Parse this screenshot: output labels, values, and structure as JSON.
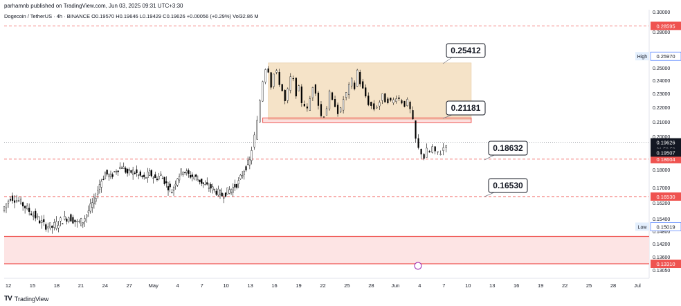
{
  "header": {
    "publish_line": "parhamnb published on TradingView.com, Jun 03, 2025 09:31 UTC+3:30",
    "symbol_line": "Dogecoin / TetherUS · 4h · BINANCE  O0.19570  H0.19646  L0.19429  C0.19626  +0.00056 (+0.29%)  Vol32.86 M"
  },
  "footer": {
    "brand": "TradingView",
    "logo": "tradingview-logo-icon"
  },
  "colors": {
    "up": "#000000",
    "zone_fill": "#f5e3c8",
    "support_fill": "#fde4e4",
    "red_line": "#ef5350",
    "label_bg": "#ffffff",
    "axis_text": "#131722",
    "price_tag_red": "#ef5350",
    "price_tag_dark": "#131722"
  },
  "chart_data": {
    "type": "candlestick",
    "title": "Dogecoin / TetherUS · 4h · BINANCE",
    "ylim": [
      0.128,
      0.302
    ],
    "y_ticks": [
      0.3,
      0.28,
      0.25,
      0.24,
      0.23,
      0.22,
      0.21,
      0.2,
      0.19,
      0.18,
      0.17,
      0.162,
      0.154,
      0.148,
      0.142,
      0.136,
      0.1305
    ],
    "y_tick_labels": [
      "0.30000",
      "0.28000",
      "0.25000",
      "0.24000",
      "0.23000",
      "0.22000",
      "0.21000",
      "0.20000",
      "0.19000",
      "0.18000",
      "0.17000",
      "0.16200",
      "0.15400",
      "0.14800",
      "0.14200",
      "0.13600",
      "0.13050"
    ],
    "x_tick_labels": [
      "12",
      "15",
      "18",
      "21",
      "24",
      "27",
      "May",
      "4",
      "7",
      "10",
      "13",
      "16",
      "19",
      "22",
      "25",
      "28",
      "Jun",
      "4",
      "7",
      "10",
      "13",
      "16",
      "19",
      "22",
      "25",
      "28",
      "Jul"
    ],
    "price_path": [
      [
        0,
        0.158
      ],
      [
        3,
        0.165
      ],
      [
        6,
        0.163
      ],
      [
        9,
        0.159
      ],
      [
        12,
        0.155
      ],
      [
        15,
        0.151
      ],
      [
        18,
        0.15
      ],
      [
        21,
        0.153
      ],
      [
        24,
        0.155
      ],
      [
        27,
        0.152
      ],
      [
        29,
        0.153
      ],
      [
        31,
        0.158
      ],
      [
        33,
        0.163
      ],
      [
        35,
        0.172
      ],
      [
        37,
        0.178
      ],
      [
        39,
        0.176
      ],
      [
        41,
        0.18
      ],
      [
        43,
        0.182
      ],
      [
        45,
        0.178
      ],
      [
        47,
        0.179
      ],
      [
        49,
        0.177
      ],
      [
        51,
        0.175
      ],
      [
        53,
        0.178
      ],
      [
        55,
        0.175
      ],
      [
        57,
        0.177
      ],
      [
        59,
        0.172
      ],
      [
        61,
        0.168
      ],
      [
        63,
        0.176
      ],
      [
        65,
        0.18
      ],
      [
        67,
        0.177
      ],
      [
        69,
        0.176
      ],
      [
        71,
        0.174
      ],
      [
        73,
        0.171
      ],
      [
        75,
        0.17
      ],
      [
        77,
        0.168
      ],
      [
        79,
        0.166
      ],
      [
        81,
        0.168
      ],
      [
        83,
        0.17
      ],
      [
        85,
        0.173
      ],
      [
        87,
        0.18
      ],
      [
        89,
        0.185
      ],
      [
        90,
        0.192
      ],
      [
        91,
        0.2
      ],
      [
        92,
        0.21
      ],
      [
        93,
        0.225
      ],
      [
        94,
        0.24
      ],
      [
        95,
        0.25
      ],
      [
        96,
        0.248
      ],
      [
        97,
        0.236
      ],
      [
        98,
        0.245
      ],
      [
        99,
        0.246
      ],
      [
        100,
        0.238
      ],
      [
        101,
        0.232
      ],
      [
        102,
        0.224
      ],
      [
        103,
        0.232
      ],
      [
        104,
        0.242
      ],
      [
        105,
        0.24
      ],
      [
        106,
        0.23
      ],
      [
        107,
        0.234
      ],
      [
        108,
        0.224
      ],
      [
        109,
        0.222
      ],
      [
        110,
        0.218
      ],
      [
        111,
        0.226
      ],
      [
        112,
        0.236
      ],
      [
        113,
        0.232
      ],
      [
        114,
        0.222
      ],
      [
        115,
        0.214
      ],
      [
        116,
        0.215
      ],
      [
        117,
        0.22
      ],
      [
        118,
        0.23
      ],
      [
        119,
        0.224
      ],
      [
        120,
        0.222
      ],
      [
        121,
        0.217
      ],
      [
        122,
        0.218
      ],
      [
        123,
        0.226
      ],
      [
        124,
        0.23
      ],
      [
        125,
        0.235
      ],
      [
        126,
        0.24
      ],
      [
        127,
        0.234
      ],
      [
        128,
        0.248
      ],
      [
        129,
        0.238
      ],
      [
        130,
        0.233
      ],
      [
        131,
        0.228
      ],
      [
        132,
        0.223
      ],
      [
        133,
        0.221
      ],
      [
        134,
        0.219
      ],
      [
        135,
        0.221
      ],
      [
        136,
        0.224
      ],
      [
        137,
        0.228
      ],
      [
        138,
        0.225
      ],
      [
        139,
        0.225
      ],
      [
        140,
        0.224
      ],
      [
        141,
        0.225
      ],
      [
        142,
        0.228
      ],
      [
        143,
        0.226
      ],
      [
        144,
        0.224
      ],
      [
        145,
        0.222
      ],
      [
        146,
        0.224
      ],
      [
        147,
        0.218
      ],
      [
        148,
        0.21
      ],
      [
        149,
        0.198
      ],
      [
        150,
        0.192
      ],
      [
        151,
        0.19
      ],
      [
        152,
        0.187
      ],
      [
        153,
        0.191
      ],
      [
        154,
        0.19
      ],
      [
        155,
        0.193
      ],
      [
        156,
        0.189
      ],
      [
        157,
        0.19
      ],
      [
        158,
        0.19
      ],
      [
        159,
        0.193
      ],
      [
        160,
        0.196
      ]
    ],
    "bars_span": [
      0,
      160
    ],
    "resistance_zone": {
      "from": 0.21181,
      "to": 0.25412,
      "label": "0.25412",
      "label2": "0.21181",
      "x_from": 95,
      "x_to": 168
    },
    "red_box": {
      "from": 0.2105,
      "to": 0.21181,
      "x_from": 93,
      "x_to": 168
    },
    "support_zone": {
      "from": 0.1331,
      "to": 0.1455
    },
    "levels": [
      {
        "price": 0.28595,
        "label": "0.28595",
        "tag": "red"
      },
      {
        "price": 0.18604,
        "label": "0.18604",
        "tag": "red"
      },
      {
        "price": 0.1653,
        "label": "0.16530",
        "tag": "red"
      },
      {
        "price": 0.1331,
        "label": "0.13310",
        "tag": "red"
      }
    ],
    "callouts": [
      {
        "text": "0.25412",
        "price": 0.25412,
        "x_bar": 168
      },
      {
        "text": "0.21181",
        "price": 0.21181,
        "x_bar": 168
      },
      {
        "text": "0.18632",
        "price": 0.18632,
        "x_bar": 175
      },
      {
        "text": "0.16530",
        "price": 0.1653,
        "x_bar": 175
      }
    ],
    "price_tags": [
      {
        "text": "0.25970",
        "price": 0.2597,
        "prefix": "High"
      },
      {
        "text": "0.19626",
        "price": 0.19626,
        "dark": true,
        "timer": "01:58:58"
      },
      {
        "text": "0.19507",
        "price": 0.19507,
        "dark": true
      },
      {
        "text": "0.15019",
        "price": 0.15019,
        "prefix": "Low"
      }
    ],
    "current_price": 0.19626
  }
}
